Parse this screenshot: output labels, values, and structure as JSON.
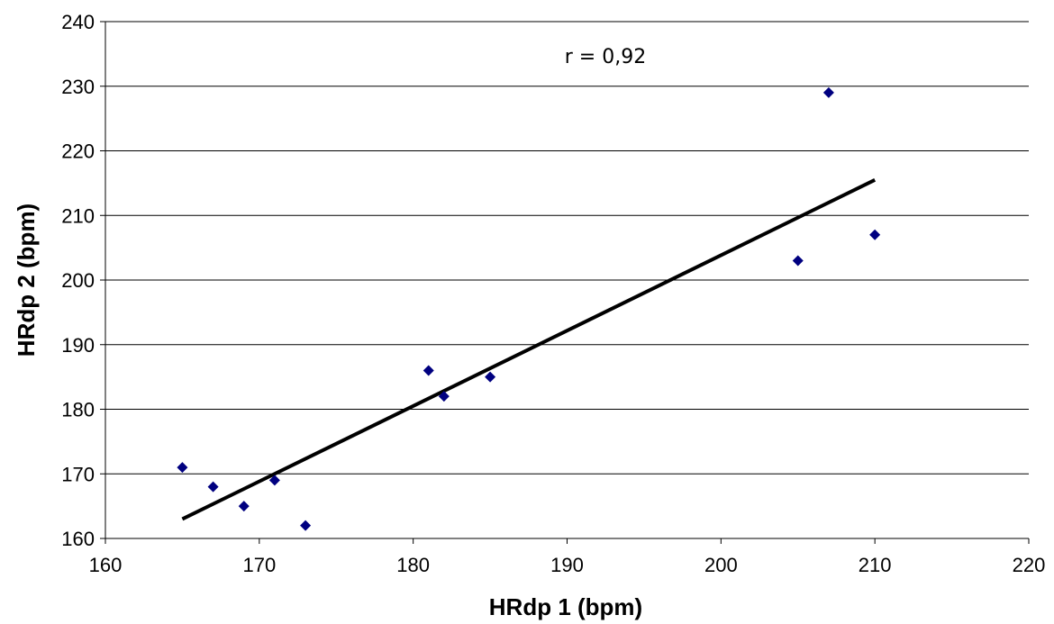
{
  "chart_data": {
    "type": "scatter",
    "title": "",
    "xlabel": "HRdp 1 (bpm)",
    "ylabel": "HRdp 2 (bpm)",
    "xlim": [
      160,
      220
    ],
    "ylim": [
      160,
      240
    ],
    "x_ticks": [
      160,
      170,
      180,
      190,
      200,
      210,
      220
    ],
    "y_ticks": [
      160,
      170,
      180,
      190,
      200,
      210,
      220,
      230,
      240
    ],
    "grid": "horizontal major gridlines",
    "legend": "none",
    "annotation": "r = 0,92",
    "marker": "diamond",
    "marker_color": "#000080",
    "trendline_color": "#000000",
    "series": [
      {
        "points": [
          {
            "x": 165,
            "y": 171
          },
          {
            "x": 167,
            "y": 168
          },
          {
            "x": 169,
            "y": 165
          },
          {
            "x": 171,
            "y": 169
          },
          {
            "x": 173,
            "y": 162
          },
          {
            "x": 181,
            "y": 186
          },
          {
            "x": 182,
            "y": 182
          },
          {
            "x": 185,
            "y": 185
          },
          {
            "x": 205,
            "y": 203
          },
          {
            "x": 207,
            "y": 229
          },
          {
            "x": 210,
            "y": 207
          }
        ]
      }
    ],
    "trendline": {
      "type": "linear",
      "x_start": 165,
      "y_start": 163,
      "x_end": 210,
      "y_end": 215.5
    }
  }
}
